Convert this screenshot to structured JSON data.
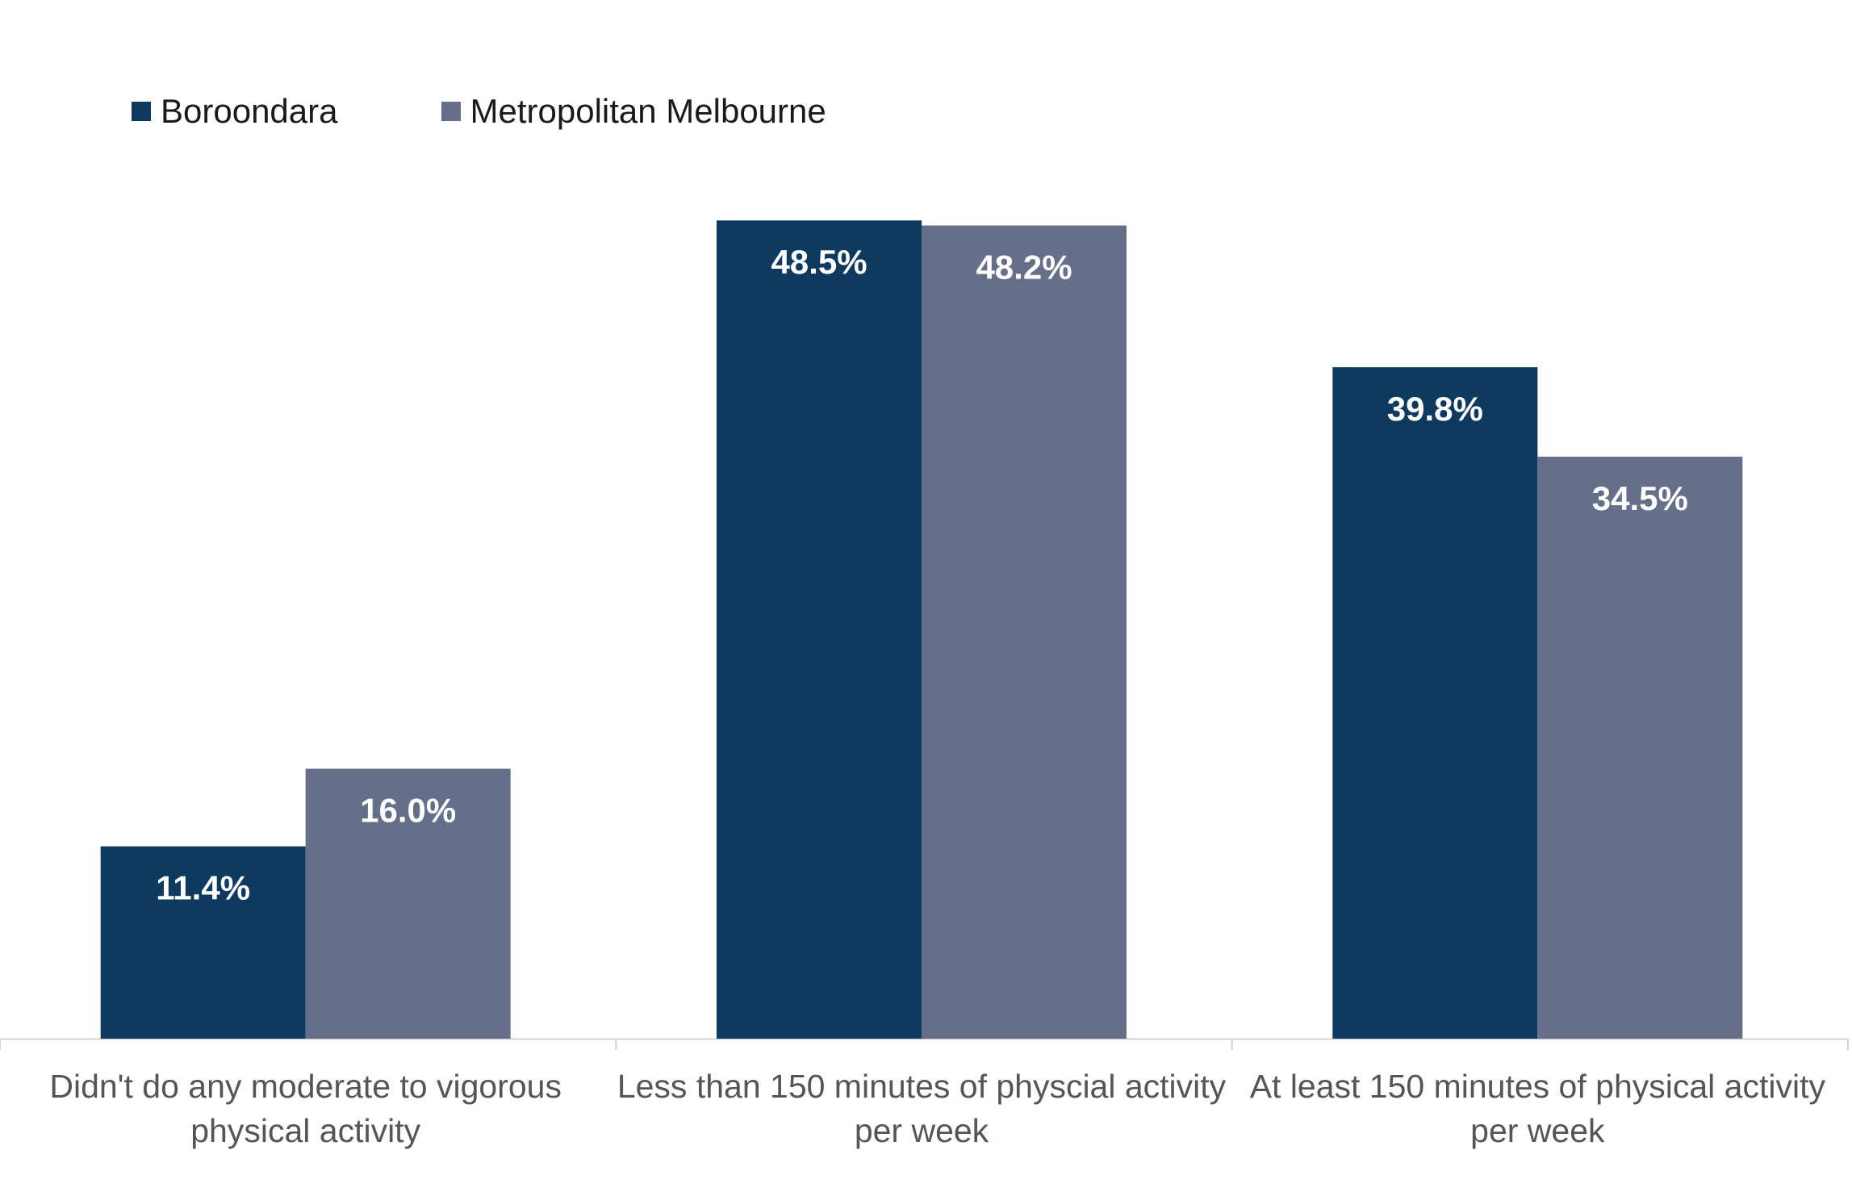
{
  "legend": {
    "series1": "Boroondara",
    "series2": "Metropolitan Melbourne"
  },
  "colors": {
    "series1": "#0f3a5f",
    "series2": "#666f8a",
    "axis": "#d0d0d0",
    "label_text": "#555555",
    "value_text": "#ffffff"
  },
  "chart_data": {
    "type": "bar",
    "title": "",
    "xlabel": "",
    "ylabel": "",
    "ylim": [
      0,
      52
    ],
    "grid": false,
    "legend_position": "top-left",
    "categories": [
      "Didn't do any moderate to vigorous physical activity",
      "Less than 150 minutes of physcial activity per week",
      "At least 150 minutes of physical activity per week"
    ],
    "category_lines": [
      [
        "Didn't do any moderate to vigorous",
        "physical activity"
      ],
      [
        "Less than 150 minutes of physcial activity",
        "per week"
      ],
      [
        "At least 150 minutes of physical activity",
        "per week"
      ]
    ],
    "series": [
      {
        "name": "Boroondara",
        "values": [
          11.4,
          48.5,
          39.8
        ],
        "labels": [
          "11.4%",
          "48.5%",
          "39.8%"
        ]
      },
      {
        "name": "Metropolitan Melbourne",
        "values": [
          16.0,
          48.2,
          34.5
        ],
        "labels": [
          "16.0%",
          "48.2%",
          "34.5%"
        ]
      }
    ]
  }
}
